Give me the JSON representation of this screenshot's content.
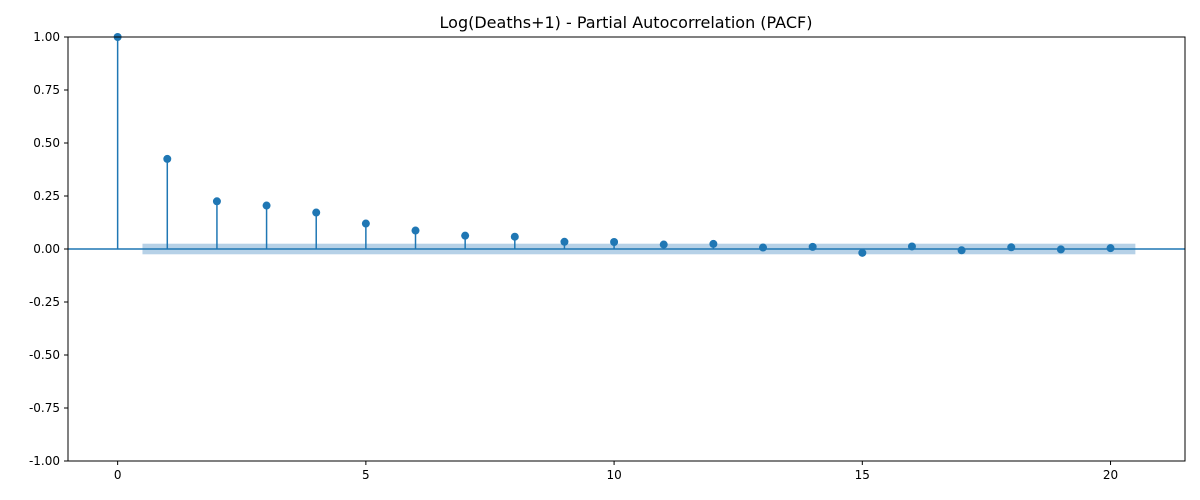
{
  "chart_data": {
    "type": "stem",
    "title": "Log(Deaths+1) - Partial Autocorrelation (PACF)",
    "xlabel": "",
    "ylabel": "",
    "xlim": [
      -1,
      21.5
    ],
    "ylim": [
      -1.0,
      1.0
    ],
    "x_ticks": [
      0,
      5,
      10,
      15,
      20
    ],
    "y_ticks": [
      "1.00",
      "0.75",
      "0.50",
      "0.25",
      "0.00",
      "-0.25",
      "-0.50",
      "-0.75",
      "-1.00"
    ],
    "confidence_band": {
      "from_lag": 0.5,
      "to_lag": 20.5,
      "lower": -0.025,
      "upper": 0.025
    },
    "series": [
      {
        "x": [
          0,
          1,
          2,
          3,
          4,
          5,
          6,
          7,
          8,
          9,
          10,
          11,
          12,
          13,
          14,
          15,
          16,
          17,
          18,
          19,
          20
        ],
        "values": [
          1.0,
          0.425,
          0.225,
          0.205,
          0.172,
          0.12,
          0.087,
          0.063,
          0.058,
          0.034,
          0.033,
          0.021,
          0.024,
          0.007,
          0.01,
          -0.018,
          0.012,
          -0.006,
          0.008,
          -0.002,
          0.004
        ]
      }
    ],
    "colors": {
      "stem": "#1f77b4",
      "band": "#a9c9e3"
    },
    "grid": false
  }
}
